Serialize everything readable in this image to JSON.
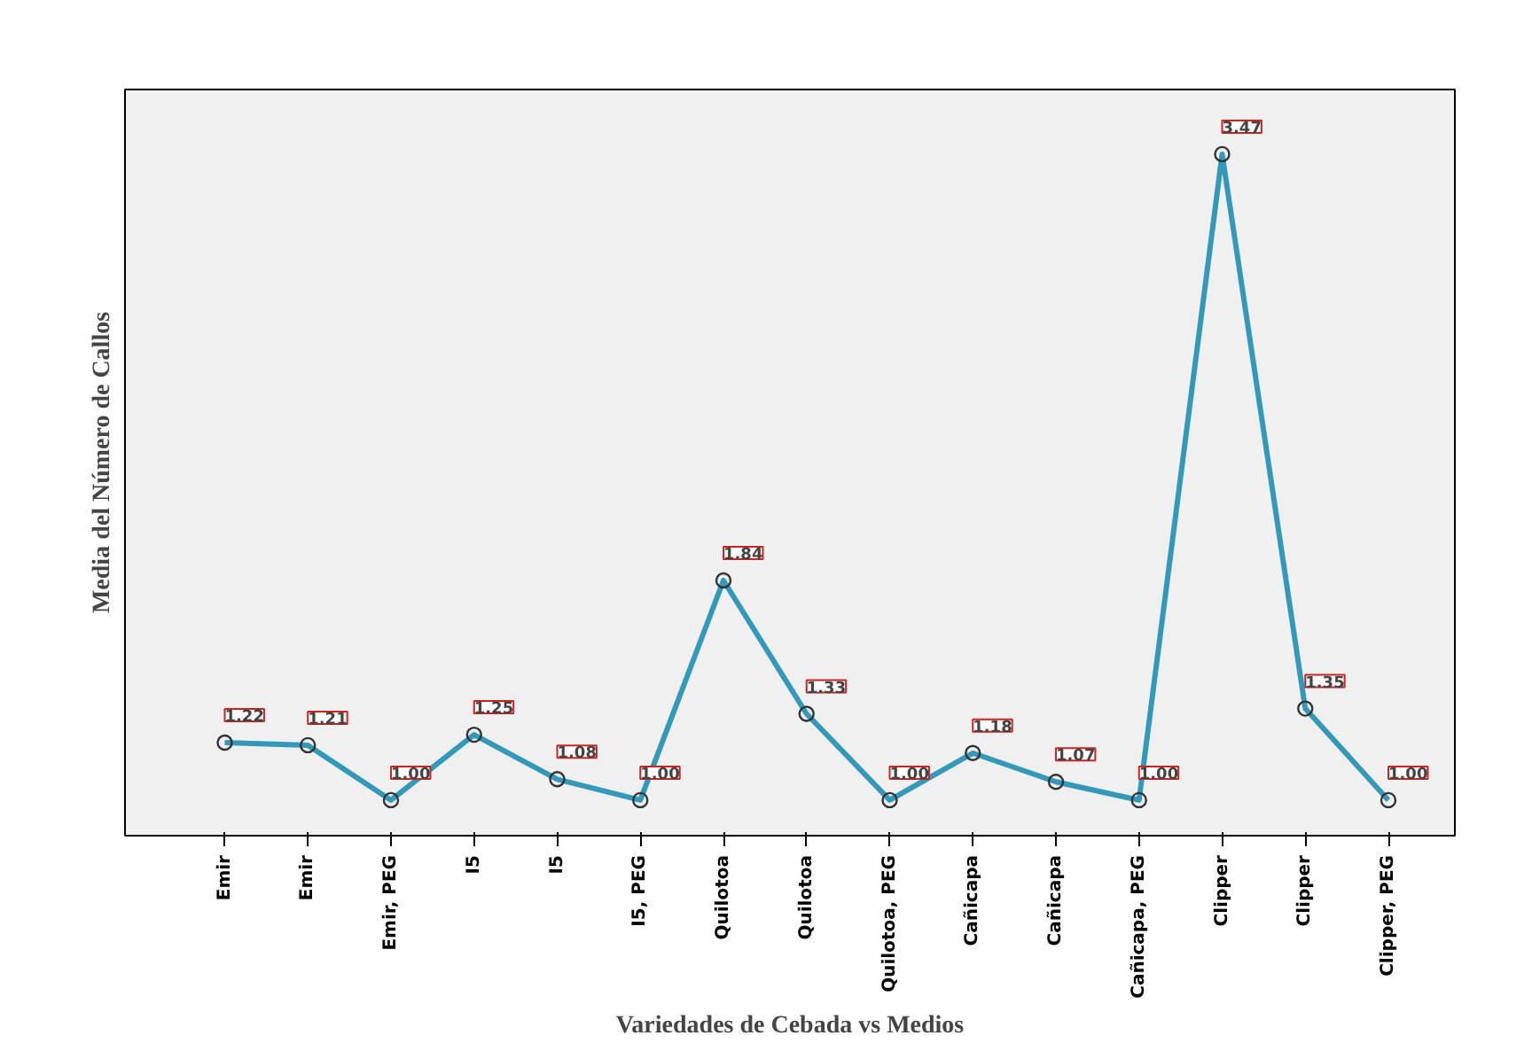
{
  "chart_data": {
    "type": "line",
    "xlabel": "Variedades de Cebada vs Medios",
    "ylabel": "Media del Número de Callos",
    "categories": [
      "Emir",
      "Emir",
      "Emir, PEG",
      "I5",
      "I5",
      "I5, PEG",
      "Quilotoa",
      "Quilotoa",
      "Quilotoa, PEG",
      "Cañicapa",
      "Cañicapa",
      "Cañicapa, PEG",
      "Clipper",
      "Clipper",
      "Clipper, PEG"
    ],
    "series": [
      {
        "color": "#3399bb",
        "values": [
          1.22,
          1.21,
          1.0,
          1.25,
          1.08,
          1.0,
          1.84,
          1.33,
          1.0,
          1.18,
          1.07,
          1.0,
          3.47,
          1.35,
          1.0
        ],
        "value_labels": [
          "1.22",
          "1.21",
          "1.00",
          "1.25",
          "1.08",
          "1.00",
          "1.84",
          "1.33",
          "1.00",
          "1.18",
          "1.07",
          "1.00",
          "3.47",
          "1.35",
          "1.00"
        ]
      }
    ],
    "marker": "circle",
    "grid": false,
    "tick_labels": "x"
  }
}
